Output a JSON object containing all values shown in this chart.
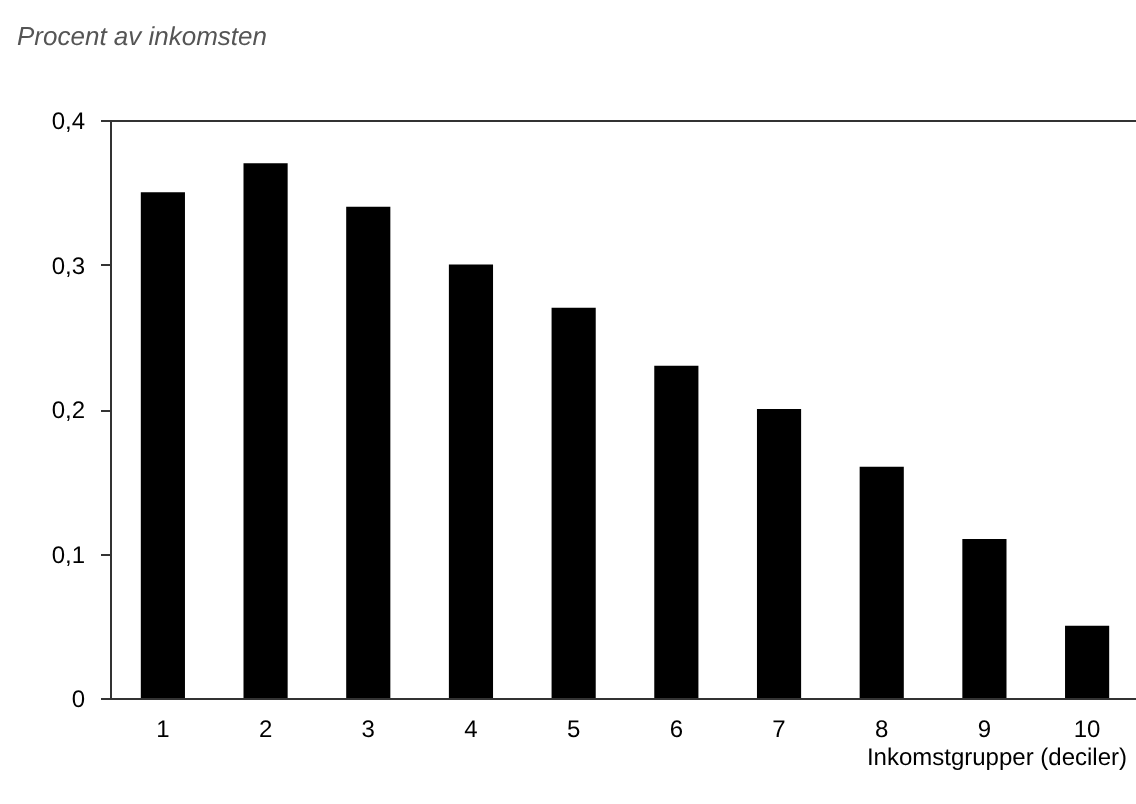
{
  "chart_data": {
    "type": "bar",
    "ylabel": "Procent av inkomsten",
    "xlabel": "Inkomstgrupper (deciler)",
    "categories": [
      "1",
      "2",
      "3",
      "4",
      "5",
      "6",
      "7",
      "8",
      "9",
      "10"
    ],
    "values": [
      0.35,
      0.37,
      0.34,
      0.3,
      0.27,
      0.23,
      0.2,
      0.16,
      0.11,
      0.05
    ],
    "color": "#000000",
    "ylim": [
      0,
      0.4
    ],
    "yticks": [
      {
        "value": 0,
        "label": "0"
      },
      {
        "value": 0.1,
        "label": "0,1"
      },
      {
        "value": 0.2,
        "label": "0,2"
      },
      {
        "value": 0.3,
        "label": "0,3"
      },
      {
        "value": 0.4,
        "label": "0,4"
      }
    ]
  }
}
